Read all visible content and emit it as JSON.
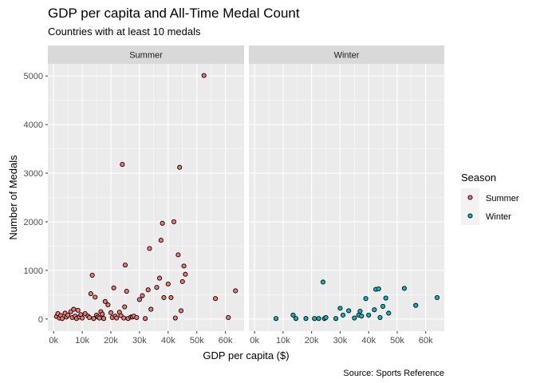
{
  "chart_data": {
    "type": "scatter",
    "title": "GDP per capita and All-Time Medal Count",
    "subtitle": "Countries with at least 10 medals",
    "caption": "Source: Sports Reference",
    "xlabel": "GDP per capita ($)",
    "ylabel": "Number of Medals",
    "xlim": [
      -2000,
      66500
    ],
    "ylim": [
      -250,
      5250
    ],
    "x_ticks": [
      0,
      10000,
      20000,
      30000,
      40000,
      50000,
      60000
    ],
    "x_tick_labels": [
      "0k",
      "10k",
      "20k",
      "30k",
      "40k",
      "50k",
      "60k"
    ],
    "y_ticks": [
      0,
      1000,
      2000,
      3000,
      4000,
      5000
    ],
    "y_tick_labels": [
      "0",
      "1000",
      "2000",
      "3000",
      "4000",
      "5000"
    ],
    "grid": true,
    "legend": {
      "title": "Season",
      "position": "right",
      "entries": [
        {
          "label": "Summer",
          "color": "#F8766D"
        },
        {
          "label": "Winter",
          "color": "#00BFC4"
        }
      ]
    },
    "panels": [
      {
        "label": "Summer",
        "color": "#F8766D",
        "points": [
          [
            1000,
            50
          ],
          [
            1500,
            110
          ],
          [
            2000,
            20
          ],
          [
            2500,
            70
          ],
          [
            3000,
            10
          ],
          [
            4000,
            120
          ],
          [
            4500,
            40
          ],
          [
            5000,
            80
          ],
          [
            6000,
            150
          ],
          [
            6500,
            30
          ],
          [
            7000,
            200
          ],
          [
            7500,
            60
          ],
          [
            8000,
            10
          ],
          [
            8500,
            180
          ],
          [
            9000,
            40
          ],
          [
            9500,
            90
          ],
          [
            10000,
            20
          ],
          [
            11000,
            110
          ],
          [
            12000,
            60
          ],
          [
            12500,
            30
          ],
          [
            13000,
            520
          ],
          [
            13500,
            900
          ],
          [
            14000,
            10
          ],
          [
            14500,
            450
          ],
          [
            15000,
            80
          ],
          [
            15500,
            40
          ],
          [
            16000,
            20
          ],
          [
            16500,
            150
          ],
          [
            17000,
            100
          ],
          [
            17500,
            10
          ],
          [
            18000,
            360
          ],
          [
            19000,
            290
          ],
          [
            20000,
            130
          ],
          [
            20500,
            30
          ],
          [
            21000,
            640
          ],
          [
            21500,
            60
          ],
          [
            22000,
            20
          ],
          [
            23000,
            140
          ],
          [
            23500,
            70
          ],
          [
            24000,
            3180
          ],
          [
            24500,
            20
          ],
          [
            24800,
            250
          ],
          [
            25000,
            1110
          ],
          [
            25500,
            570
          ],
          [
            26000,
            10
          ],
          [
            27000,
            40
          ],
          [
            27500,
            40
          ],
          [
            28000,
            60
          ],
          [
            29000,
            30
          ],
          [
            30000,
            400
          ],
          [
            31000,
            480
          ],
          [
            32000,
            10
          ],
          [
            33000,
            600
          ],
          [
            33500,
            1450
          ],
          [
            34000,
            200
          ],
          [
            36000,
            650
          ],
          [
            37000,
            840
          ],
          [
            37500,
            1620
          ],
          [
            38000,
            1970
          ],
          [
            38500,
            440
          ],
          [
            40000,
            720
          ],
          [
            41000,
            440
          ],
          [
            42000,
            2000
          ],
          [
            42500,
            20
          ],
          [
            43500,
            1320
          ],
          [
            44000,
            3120
          ],
          [
            44500,
            170
          ],
          [
            45000,
            770
          ],
          [
            45500,
            1090
          ],
          [
            46000,
            920
          ],
          [
            52500,
            5010
          ],
          [
            56500,
            420
          ],
          [
            61000,
            30
          ],
          [
            63500,
            580
          ]
        ]
      },
      {
        "label": "Winter",
        "color": "#00BFC4",
        "points": [
          [
            7500,
            10
          ],
          [
            13500,
            80
          ],
          [
            14500,
            10
          ],
          [
            18000,
            10
          ],
          [
            21000,
            10
          ],
          [
            22500,
            10
          ],
          [
            24000,
            760
          ],
          [
            24500,
            10
          ],
          [
            25000,
            30
          ],
          [
            28500,
            10
          ],
          [
            30000,
            220
          ],
          [
            31000,
            80
          ],
          [
            33000,
            170
          ],
          [
            35000,
            20
          ],
          [
            36500,
            80
          ],
          [
            37000,
            160
          ],
          [
            37500,
            60
          ],
          [
            39000,
            420
          ],
          [
            40000,
            80
          ],
          [
            42000,
            190
          ],
          [
            42500,
            610
          ],
          [
            43500,
            620
          ],
          [
            44000,
            30
          ],
          [
            45000,
            260
          ],
          [
            46000,
            430
          ],
          [
            47000,
            120
          ],
          [
            52500,
            630
          ],
          [
            56500,
            280
          ],
          [
            64000,
            440
          ]
        ]
      }
    ]
  }
}
